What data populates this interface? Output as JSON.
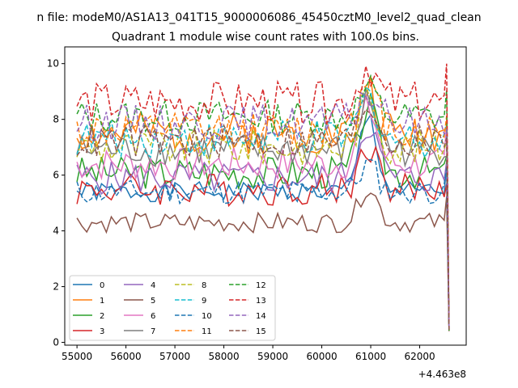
{
  "chart_data": {
    "type": "line",
    "suptitle": "n file: modeM0/AS1A13_041T15_9000006086_45450cztM0_level2_quad_clean",
    "title": "Quadrant 1 module wise count rates with 100.0s bins.",
    "xlabel": "",
    "ylabel": "",
    "x_offset_label": "+4.463e8",
    "xlim": [
      54750,
      62950
    ],
    "ylim": [
      -0.1,
      10.6
    ],
    "x_ticks": [
      55000,
      56000,
      57000,
      58000,
      59000,
      60000,
      61000,
      62000
    ],
    "y_ticks": [
      0,
      2,
      4,
      6,
      8,
      10
    ],
    "grid": false,
    "legend_position": "lower-left",
    "legend_columns": 4,
    "x_start": 55000,
    "x_step": 100,
    "x_end_spike": [
      62500,
      62550,
      62600
    ],
    "series": [
      {
        "name": "0",
        "color": "#1f77b4",
        "dash": "solid",
        "level": 5.4,
        "noise": 0.12,
        "peak": 2.7,
        "seed": 1
      },
      {
        "name": "1",
        "color": "#ff7f0e",
        "dash": "solid",
        "level": 7.5,
        "noise": 0.25,
        "peak": 1.6,
        "seed": 2
      },
      {
        "name": "2",
        "color": "#2ca02c",
        "dash": "solid",
        "level": 6.1,
        "noise": 0.2,
        "peak": 2.4,
        "seed": 3
      },
      {
        "name": "3",
        "color": "#d62728",
        "dash": "solid",
        "level": 5.5,
        "noise": 0.2,
        "peak": 1.6,
        "seed": 4
      },
      {
        "name": "4",
        "color": "#9467bd",
        "dash": "solid",
        "level": 5.9,
        "noise": 0.2,
        "peak": 2.0,
        "seed": 5
      },
      {
        "name": "5",
        "color": "#8c564b",
        "dash": "solid",
        "level": 4.3,
        "noise": 0.12,
        "peak": 1.3,
        "seed": 6
      },
      {
        "name": "6",
        "color": "#e377c2",
        "dash": "solid",
        "level": 6.4,
        "noise": 0.2,
        "peak": 2.0,
        "seed": 7
      },
      {
        "name": "7",
        "color": "#7f7f7f",
        "dash": "solid",
        "level": 6.9,
        "noise": 0.2,
        "peak": 1.8,
        "seed": 8
      },
      {
        "name": "8",
        "color": "#bcbd22",
        "dash": "dashed",
        "level": 7.0,
        "noise": 0.22,
        "peak": 1.8,
        "seed": 9
      },
      {
        "name": "9",
        "color": "#17becf",
        "dash": "dashed",
        "level": 7.3,
        "noise": 0.22,
        "peak": 1.6,
        "seed": 10
      },
      {
        "name": "10",
        "color": "#1f77b4",
        "dash": "dashed",
        "level": 5.4,
        "noise": 0.15,
        "peak": 1.0,
        "seed": 11
      },
      {
        "name": "11",
        "color": "#ff7f0e",
        "dash": "dashed",
        "level": 7.6,
        "noise": 0.22,
        "peak": 1.5,
        "seed": 12
      },
      {
        "name": "12",
        "color": "#2ca02c",
        "dash": "dashed",
        "level": 8.1,
        "noise": 0.2,
        "peak": 1.0,
        "seed": 13
      },
      {
        "name": "13",
        "color": "#d62728",
        "dash": "dashed",
        "level": 8.6,
        "noise": 0.25,
        "peak": 1.4,
        "seed": 14
      },
      {
        "name": "14",
        "color": "#9467bd",
        "dash": "dashed",
        "level": 7.9,
        "noise": 0.22,
        "peak": 1.1,
        "seed": 15
      },
      {
        "name": "15",
        "color": "#8c564b",
        "dash": "dashed",
        "level": 7.2,
        "noise": 0.2,
        "peak": 1.4,
        "seed": 16
      }
    ]
  }
}
